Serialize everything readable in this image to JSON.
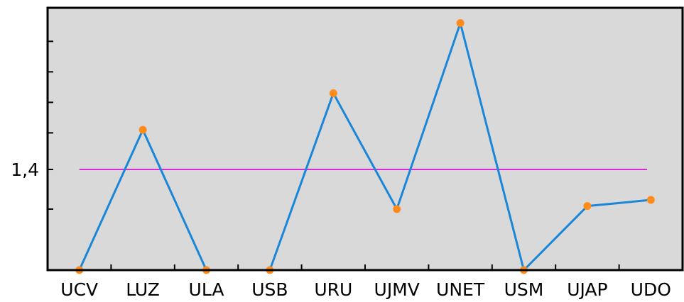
{
  "chart_data": {
    "type": "line",
    "categories": [
      "UCV",
      "LUZ",
      "ULA",
      "USB",
      "URU",
      "UJMV",
      "UNET",
      "USM",
      "UJAP",
      "UDO"
    ],
    "series": [
      {
        "values": [
          1.07,
          1.53,
          1.07,
          1.07,
          1.65,
          1.27,
          1.88,
          1.07,
          1.28,
          1.3
        ]
      }
    ],
    "reference_line": {
      "value": 1.4,
      "label": "1,4"
    },
    "ylim": [
      1.07,
      1.93
    ],
    "y_ticks": [
      1.27,
      1.4,
      1.52,
      1.62,
      1.72,
      1.82
    ],
    "y_tick_labels": [
      "1,4"
    ],
    "grid": false,
    "legend": "none",
    "colors": {
      "plot_background": "#d9d9d9",
      "line": "#1a86d8",
      "marker": "#ff8c1a",
      "reference_line": "#d62bd6",
      "axes": "#000000"
    }
  }
}
